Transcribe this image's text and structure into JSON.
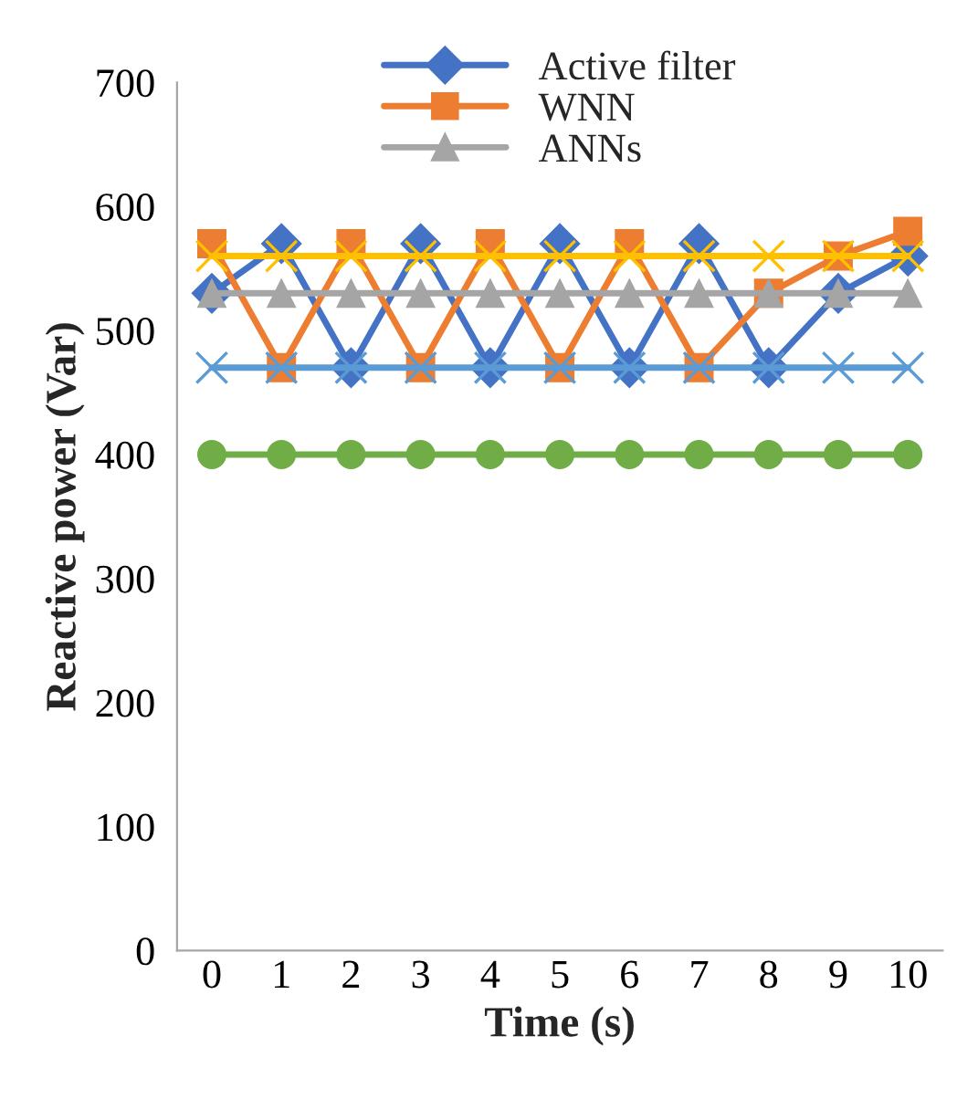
{
  "chart_data": {
    "type": "line",
    "xlabel": "Time (s)",
    "ylabel": "Reactive power (Var)",
    "categories": [
      "0",
      "1",
      "2",
      "3",
      "4",
      "5",
      "6",
      "7",
      "8",
      "9",
      "10"
    ],
    "series": [
      {
        "name": "Active filter",
        "color": "#4472c4",
        "marker": "diamond",
        "values": [
          530,
          570,
          470,
          570,
          470,
          570,
          470,
          570,
          470,
          530,
          560
        ]
      },
      {
        "name": "WNN",
        "color": "#ed7d31",
        "marker": "square",
        "values": [
          570,
          470,
          570,
          470,
          570,
          470,
          570,
          470,
          530,
          560,
          580
        ]
      },
      {
        "name": "ANNs",
        "color": "#a5a5a5",
        "marker": "triangle",
        "values": [
          530,
          530,
          530,
          530,
          530,
          530,
          530,
          530,
          530,
          530,
          530
        ]
      },
      {
        "color": "#5b9bd5",
        "marker": "cross",
        "values": [
          470,
          470,
          470,
          470,
          470,
          470,
          470,
          470,
          470,
          470,
          470
        ]
      },
      {
        "color": "#ffc000",
        "marker": "cross",
        "values": [
          560,
          560,
          560,
          560,
          560,
          560,
          560,
          560,
          560,
          560,
          560
        ]
      },
      {
        "color": "#70ad47",
        "marker": "circle",
        "values": [
          400,
          400,
          400,
          400,
          400,
          400,
          400,
          400,
          400,
          400,
          400
        ]
      }
    ],
    "ylim": [
      0,
      700
    ],
    "yticks": [
      0,
      100,
      200,
      300,
      400,
      500,
      600,
      700
    ],
    "grid": false,
    "legend": "top"
  }
}
